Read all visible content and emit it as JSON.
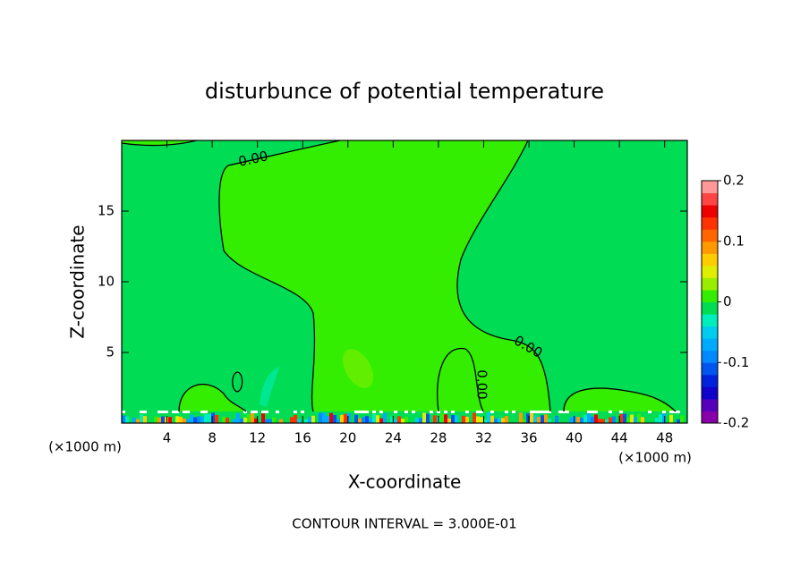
{
  "chart_data": {
    "type": "contour",
    "title": "disturbunce of potential temperature",
    "x_label": "X-coordinate",
    "y_label": "Z-coordinate",
    "x_unit": "(×1000 m)",
    "y_unit": "(×1000 m)",
    "xlim": [
      0,
      50
    ],
    "ylim": [
      0,
      20
    ],
    "xticks": [
      4,
      8,
      12,
      16,
      20,
      24,
      28,
      32,
      36,
      40,
      44,
      48
    ],
    "yticks": [
      5,
      10,
      15
    ],
    "colorbar_lim": [
      -0.2,
      0.2
    ],
    "colorbar_ticks": [
      -0.2,
      -0.1,
      0,
      0.1,
      0.2
    ],
    "colorbar_colors": [
      "#8800aa",
      "#5500bb",
      "#1100cc",
      "#0022dd",
      "#0055ee",
      "#0088ff",
      "#00aaff",
      "#00ccee",
      "#00eebb",
      "#00dd55",
      "#33ee00",
      "#99ee00",
      "#ddee00",
      "#ffcc00",
      "#ff9900",
      "#ff6600",
      "#ff3300",
      "#ee0000",
      "#ff4444",
      "#ff9999"
    ],
    "contour_labels": [
      "0.00",
      "0.00",
      "0.00"
    ],
    "note": "CONTOUR INTERVAL = 3.000E-01"
  }
}
